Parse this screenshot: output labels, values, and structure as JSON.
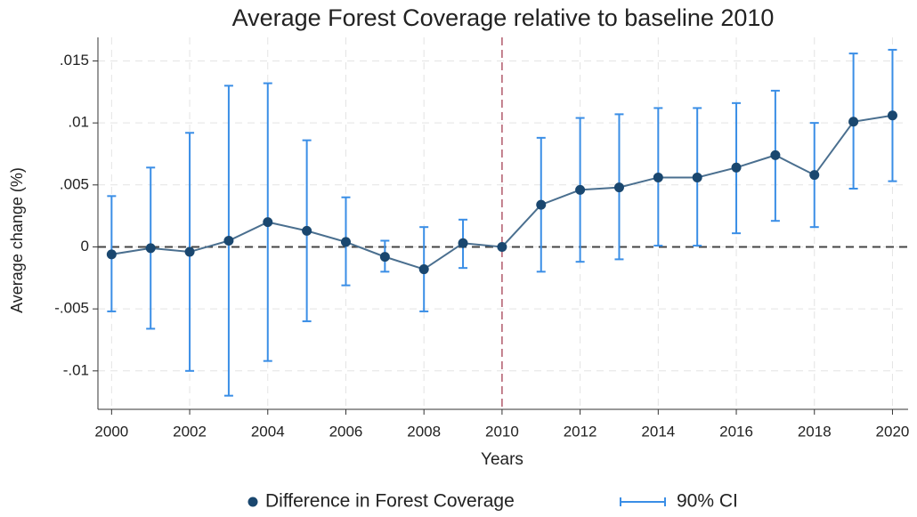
{
  "chart_data": {
    "type": "line",
    "title": "Average Forest Coverage relative to baseline 2010",
    "x_label": "Years",
    "y_label": "Average change (%)",
    "x": [
      2000,
      2001,
      2002,
      2003,
      2004,
      2005,
      2006,
      2007,
      2008,
      2009,
      2010,
      2011,
      2012,
      2013,
      2014,
      2015,
      2016,
      2017,
      2018,
      2019,
      2020
    ],
    "series": [
      {
        "name": "Difference in Forest Coverage",
        "color": "#1a476f",
        "values": [
          -0.0006,
          -0.0001,
          -0.0004,
          0.0005,
          0.002,
          0.0013,
          0.0004,
          -0.0008,
          -0.0018,
          0.0003,
          0,
          0.0034,
          0.0046,
          0.0048,
          0.0056,
          0.0056,
          0.0064,
          0.0074,
          0.0058,
          0.0101,
          0.0106
        ]
      },
      {
        "name": "90% CI",
        "color": "#3a8ee6",
        "low": [
          -0.0052,
          -0.0066,
          -0.01,
          -0.012,
          -0.0092,
          -0.006,
          -0.0031,
          -0.002,
          -0.0052,
          -0.0017,
          null,
          -0.002,
          -0.0012,
          -0.001,
          0.0001,
          0.0001,
          0.0011,
          0.0021,
          0.0016,
          0.0047,
          0.0053
        ],
        "high": [
          0.0041,
          0.0064,
          0.0092,
          0.013,
          0.0132,
          0.0086,
          0.004,
          0.0005,
          0.0016,
          0.0022,
          null,
          0.0088,
          0.0104,
          0.0107,
          0.0112,
          0.0112,
          0.0116,
          0.0126,
          0.01,
          0.0156,
          0.0159
        ]
      }
    ],
    "xlim": [
      1999.65,
      2020.4
    ],
    "xticks": [
      2000,
      2002,
      2004,
      2006,
      2008,
      2010,
      2012,
      2014,
      2016,
      2018,
      2020
    ],
    "ylim": [
      -0.0131,
      0.0169
    ],
    "yticks": [
      {
        "value": -0.01,
        "label": "-.01"
      },
      {
        "value": -0.005,
        "label": "-.005"
      },
      0,
      {
        "value": 0.005,
        "label": ".005"
      },
      {
        "value": 0.01,
        "label": ".01"
      },
      {
        "value": 0.015,
        "label": ".015"
      }
    ],
    "reference_lines": {
      "x": 2010,
      "y": 0,
      "x_color": "#b05a6a",
      "y_color": "#444444"
    },
    "grid": true,
    "legend": "bottom"
  }
}
